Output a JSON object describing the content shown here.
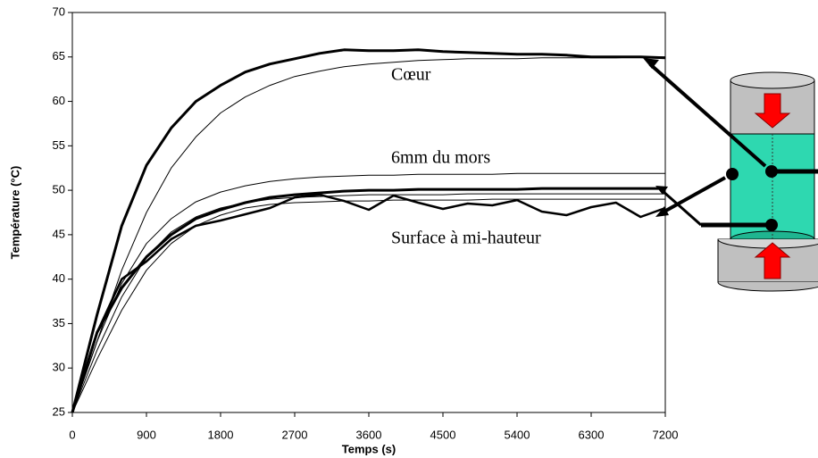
{
  "chart_data": {
    "type": "line",
    "xlabel": "Temps (s)",
    "ylabel": "Température (°C)",
    "x": [
      0,
      300,
      600,
      900,
      1200,
      1500,
      1800,
      2100,
      2400,
      2700,
      3000,
      3300,
      3600,
      3900,
      4200,
      4500,
      4800,
      5100,
      5400,
      5700,
      6000,
      6300,
      6600,
      6900,
      7200
    ],
    "series": [
      {
        "color": "#000000",
        "linewidth": 3,
        "values": [
          25,
          36,
          46,
          52.8,
          57,
          60,
          61.8,
          63.3,
          64.2,
          64.8,
          65.4,
          65.8,
          65.7,
          65.7,
          65.8,
          65.6,
          65.5,
          65.4,
          65.3,
          65.3,
          65.2,
          65.0,
          65.0,
          65.0,
          64.9
        ]
      },
      {
        "color": "#000000",
        "linewidth": 1,
        "values": [
          25,
          33,
          41,
          47.5,
          52.5,
          56,
          58.7,
          60.5,
          61.8,
          62.8,
          63.4,
          63.9,
          64.2,
          64.4,
          64.6,
          64.7,
          64.8,
          64.8,
          64.8,
          64.9,
          64.9,
          64.9,
          64.9,
          65.0,
          65.0
        ]
      },
      {
        "color": "#000000",
        "linewidth": 1,
        "values": [
          25,
          33,
          39.5,
          44,
          46.8,
          48.7,
          49.8,
          50.5,
          51,
          51.3,
          51.5,
          51.6,
          51.7,
          51.7,
          51.8,
          51.8,
          51.8,
          51.8,
          51.9,
          51.9,
          51.9,
          51.9,
          51.9,
          51.9,
          51.9
        ]
      },
      {
        "color": "#000000",
        "linewidth": 3,
        "values": [
          25,
          34,
          39,
          42.5,
          45,
          46.8,
          47.8,
          48.6,
          49.2,
          49.5,
          49.7,
          49.9,
          50,
          50,
          50.1,
          50.1,
          50.1,
          50.1,
          50.1,
          50.2,
          50.2,
          50.2,
          50.2,
          50.2,
          50.2
        ]
      },
      {
        "color": "#000000",
        "linewidth": 2.5,
        "values": [
          25,
          34,
          40,
          42,
          44.5,
          46,
          46.6,
          47.3,
          48,
          49.2,
          49.5,
          48.8,
          47.8,
          49.4,
          48.6,
          47.9,
          48.5,
          48.3,
          48.9,
          47.6,
          47.2,
          48.1,
          48.6,
          47.0,
          48.0
        ]
      },
      {
        "color": "#000000",
        "linewidth": 1,
        "values": [
          25,
          32,
          38,
          42.5,
          45.3,
          47,
          48,
          48.6,
          49,
          49.2,
          49.3,
          49.4,
          49.5,
          49.5,
          49.5,
          49.5,
          49.6,
          49.6,
          49.6,
          49.6,
          49.6,
          49.6,
          49.6,
          49.6,
          49.6
        ]
      },
      {
        "color": "#000000",
        "linewidth": 1,
        "values": [
          25,
          31,
          36.5,
          41,
          44,
          46,
          47.2,
          48,
          48.4,
          48.6,
          48.7,
          48.8,
          48.8,
          48.9,
          48.9,
          48.9,
          48.9,
          49,
          49,
          49,
          49,
          49,
          49,
          49,
          49
        ]
      }
    ],
    "annotations": [
      "Cœur",
      "6mm du mors",
      "Surface à mi-hauteur"
    ],
    "xlim": [
      0,
      7200
    ],
    "xticks": [
      0,
      900,
      1800,
      2700,
      3600,
      4500,
      5400,
      6300,
      7200
    ],
    "ylim": [
      25,
      70
    ],
    "yticks": [
      25,
      30,
      35,
      40,
      45,
      50,
      55,
      60,
      65,
      70
    ],
    "grid": false
  }
}
